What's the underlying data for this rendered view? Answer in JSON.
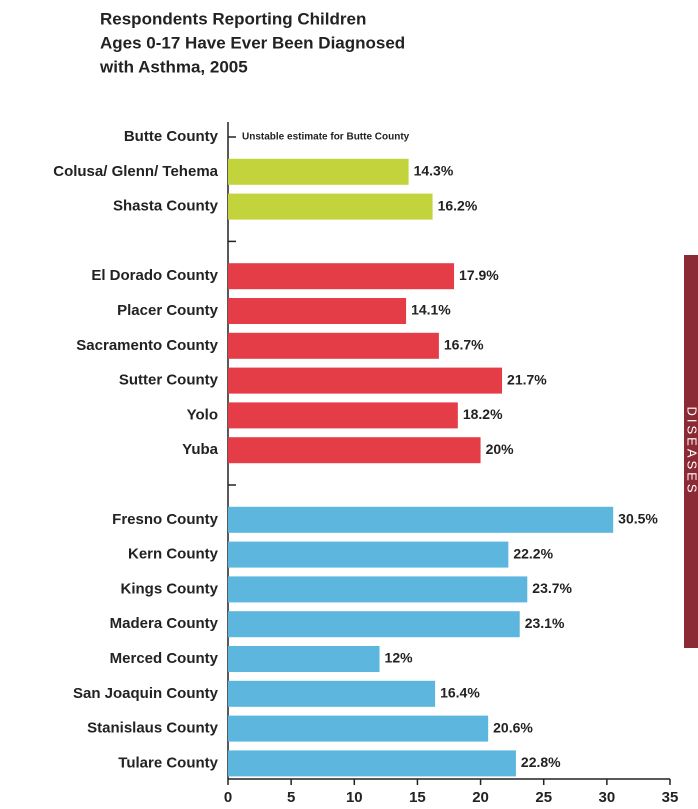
{
  "chart_data": {
    "type": "hbar",
    "title": [
      "Respondents Reporting Children",
      "Ages 0-17 Have Ever Been Diagnosed",
      "with Asthma, 2005"
    ],
    "categories": [
      "Butte County",
      "Colusa/ Glenn/ Tehema",
      "Shasta County",
      null,
      "El Dorado County",
      "Placer County",
      "Sacramento County",
      "Sutter County",
      "Yolo",
      "Yuba",
      null,
      "Fresno County",
      "Kern County",
      "Kings County",
      "Madera County",
      "Merced County",
      "San Joaquin County",
      "Stanislaus County",
      "Tulare County"
    ],
    "series": [
      {
        "color": "#c3d33c",
        "values": [
          null,
          14.3,
          16.2,
          null,
          null,
          null,
          null,
          null,
          null,
          null,
          null,
          null,
          null,
          null,
          null,
          null,
          null,
          null,
          null
        ],
        "value_labels": [
          null,
          "14.3%",
          "16.2%",
          null,
          null,
          null,
          null,
          null,
          null,
          null,
          null,
          null,
          null,
          null,
          null,
          null,
          null,
          null,
          null
        ]
      },
      {
        "color": "#e53d47",
        "values": [
          null,
          null,
          null,
          null,
          17.9,
          14.1,
          16.7,
          21.7,
          18.2,
          20,
          null,
          null,
          null,
          null,
          null,
          null,
          null,
          null,
          null
        ],
        "value_labels": [
          null,
          null,
          null,
          null,
          "17.9%",
          "14.1%",
          "16.7%",
          "21.7%",
          "18.2%",
          "20%",
          null,
          null,
          null,
          null,
          null,
          null,
          null,
          null,
          null
        ]
      },
      {
        "color": "#5cb6de",
        "values": [
          null,
          null,
          null,
          null,
          null,
          null,
          null,
          null,
          null,
          null,
          null,
          30.5,
          22.2,
          23.7,
          23.1,
          12,
          16.4,
          20.6,
          22.8
        ],
        "value_labels": [
          null,
          null,
          null,
          null,
          null,
          null,
          null,
          null,
          null,
          null,
          null,
          "30.5%",
          "22.2%",
          "23.7%",
          "23.1%",
          "12%",
          "16.4%",
          "20.6%",
          "22.8%"
        ]
      }
    ],
    "annotation": "Unstable estimate for Butte County",
    "xlim": [
      0,
      35
    ],
    "xticks": [
      0,
      5,
      10,
      15,
      20,
      25,
      30,
      35
    ]
  },
  "side_tab": "DISEASES"
}
